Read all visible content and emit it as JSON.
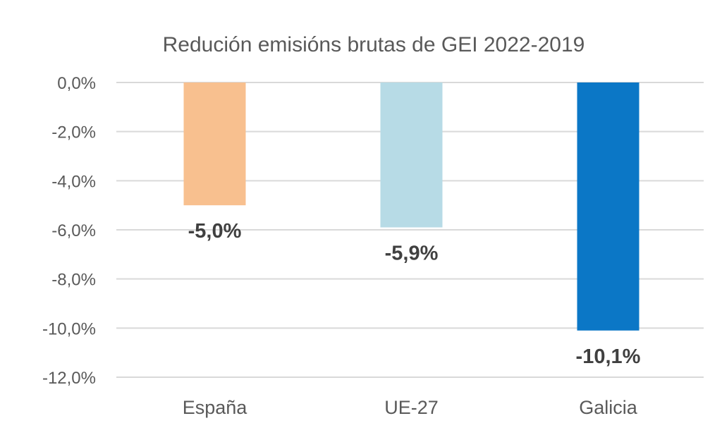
{
  "chart_data": {
    "type": "bar",
    "title": "Redución emisións brutas de GEI 2022-2019",
    "categories": [
      "España",
      "UE-27",
      "Galicia"
    ],
    "values": [
      -5.0,
      -5.9,
      -10.1
    ],
    "data_labels": [
      "-5,0%",
      "-5,9%",
      "-10,1%"
    ],
    "colors": [
      "#f8c08f",
      "#b7dbe6",
      "#0b77c6"
    ],
    "ylim": [
      -12.0,
      0.0
    ],
    "yticks": [
      0.0,
      -2.0,
      -4.0,
      -6.0,
      -8.0,
      -10.0,
      -12.0
    ],
    "ytick_labels": [
      "0,0%",
      "-2,0%",
      "-4,0%",
      "-6,0%",
      "-8,0%",
      "-10,0%",
      "-12,0%"
    ],
    "xlabel": "",
    "ylabel": "",
    "grid": true,
    "legend": "none"
  }
}
